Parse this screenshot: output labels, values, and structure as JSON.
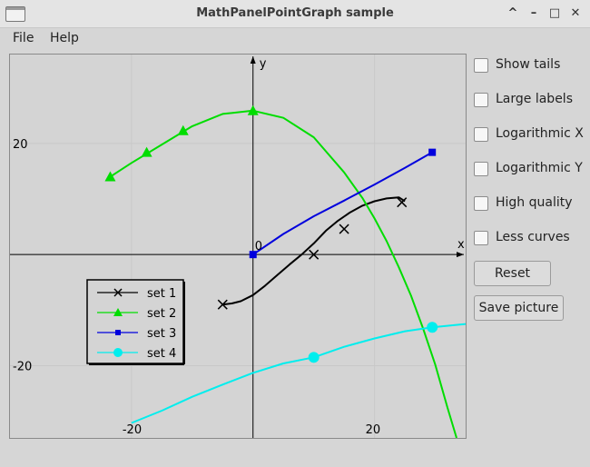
{
  "window": {
    "title": "MathPanelPointGraph sample"
  },
  "menu": {
    "file": "File",
    "help": "Help"
  },
  "window_controls": {
    "minimize": "–",
    "maximize": "□",
    "close": "✕",
    "shade": "^"
  },
  "options": [
    {
      "label": "Show tails",
      "checked": false
    },
    {
      "label": "Large labels",
      "checked": false
    },
    {
      "label": "Logarithmic X",
      "checked": false
    },
    {
      "label": "Logarithmic Y",
      "checked": false
    },
    {
      "label": "High quality",
      "checked": false
    },
    {
      "label": "Less curves",
      "checked": false
    }
  ],
  "buttons": {
    "reset": "Reset",
    "save": "Save picture"
  },
  "chart_data": {
    "type": "line",
    "xlabel": "x",
    "ylabel": "y",
    "xlim": [
      -40,
      35
    ],
    "ylim": [
      -33,
      36
    ],
    "origin_label": "0",
    "ticks": {
      "x": [
        "-20",
        "20"
      ],
      "y": [
        "20",
        "-20"
      ]
    },
    "tick_values": {
      "x": [
        -20,
        20
      ],
      "y": [
        20,
        -20
      ]
    },
    "series": [
      {
        "name": "set 1",
        "color": "#000000",
        "marker": "x",
        "curve": [
          [
            -5,
            -9
          ],
          [
            -3.5,
            -8.8
          ],
          [
            -2,
            -8.4
          ],
          [
            0,
            -7.3
          ],
          [
            2,
            -5.6
          ],
          [
            4,
            -3.7
          ],
          [
            6,
            -1.8
          ],
          [
            8,
            0
          ],
          [
            10,
            2
          ],
          [
            12,
            4.3
          ],
          [
            14,
            6.1
          ],
          [
            16,
            7.6
          ],
          [
            18,
            8.8
          ],
          [
            20,
            9.6
          ],
          [
            22,
            10.1
          ],
          [
            24,
            10.3
          ],
          [
            25,
            9.6
          ]
        ],
        "points": [
          [
            -5,
            -9
          ],
          [
            10,
            0
          ],
          [
            15,
            4.6
          ],
          [
            24.5,
            9.4
          ]
        ]
      },
      {
        "name": "set 2",
        "color": "#00dd00",
        "marker": "triangle",
        "curve": [
          [
            -23.5,
            14
          ],
          [
            -20,
            16.5
          ],
          [
            -15,
            19.8
          ],
          [
            -10,
            23.1
          ],
          [
            -5,
            25.3
          ],
          [
            0,
            25.9
          ],
          [
            5,
            24.6
          ],
          [
            10,
            21.1
          ],
          [
            15,
            14.8
          ],
          [
            18,
            10.2
          ],
          [
            20,
            6.5
          ],
          [
            22,
            2.4
          ],
          [
            24,
            -2.3
          ],
          [
            26,
            -7.4
          ],
          [
            28,
            -13.3
          ],
          [
            30,
            -19.8
          ],
          [
            32,
            -27.5
          ],
          [
            33.5,
            -33
          ]
        ],
        "points": [
          [
            -23.5,
            14
          ],
          [
            -17.5,
            18.4
          ],
          [
            -11.5,
            22.3
          ],
          [
            0,
            25.9
          ]
        ]
      },
      {
        "name": "set 3",
        "color": "#0000dd",
        "marker": "square",
        "curve": [
          [
            0,
            0
          ],
          [
            5,
            3.7
          ],
          [
            10,
            6.9
          ],
          [
            15,
            9.7
          ],
          [
            20,
            12.6
          ],
          [
            25,
            15.6
          ],
          [
            29.5,
            18.4
          ]
        ],
        "points": [
          [
            0,
            0
          ],
          [
            29.5,
            18.4
          ]
        ]
      },
      {
        "name": "set 4",
        "color": "#00eeee",
        "marker": "circle",
        "curve": [
          [
            -20,
            -30.3
          ],
          [
            -15,
            -28.1
          ],
          [
            -10,
            -25.6
          ],
          [
            -5,
            -23.4
          ],
          [
            0,
            -21.3
          ],
          [
            5,
            -19.6
          ],
          [
            10,
            -18.5
          ],
          [
            15,
            -16.6
          ],
          [
            20,
            -15.1
          ],
          [
            25,
            -13.8
          ],
          [
            29.5,
            -13.1
          ],
          [
            35,
            -12.5
          ]
        ],
        "points": [
          [
            10,
            -18.5
          ],
          [
            29.5,
            -13.1
          ]
        ]
      }
    ],
    "legend_position": "bottom-left",
    "grid": true
  }
}
